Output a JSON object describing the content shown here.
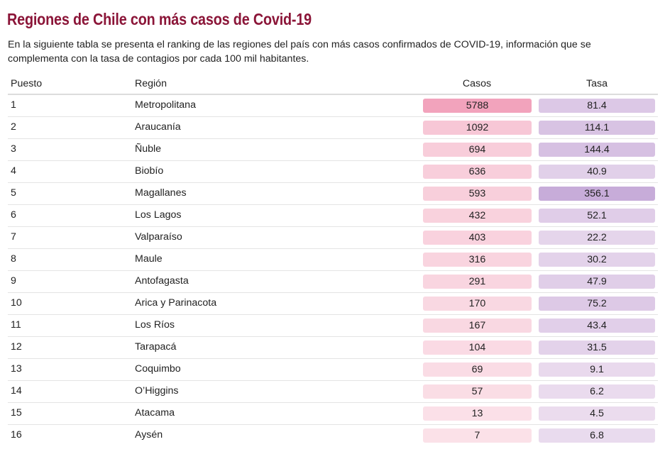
{
  "title": "Regiones de Chile con más casos de Covid-19",
  "subtitle": "En la siguiente tabla se presenta el ranking de las regiones del país con más casos confirmados de COVID-19, información que se complementa con la tasa de contagios por cada 100 mil habitantes.",
  "colors": {
    "title": "#8b1538",
    "casos_low": "#fbe3ea",
    "casos_high": "#f2a3bc",
    "tasa_low": "#efe2f1",
    "tasa_high": "#c7acd9"
  },
  "chart_data": {
    "type": "table",
    "columns": [
      "Puesto",
      "Región",
      "Casos",
      "Tasa"
    ],
    "rows": [
      {
        "puesto": "1",
        "region": "Metropolitana",
        "casos": 5788,
        "tasa": 81.4
      },
      {
        "puesto": "2",
        "region": "Araucanía",
        "casos": 1092,
        "tasa": 114.1
      },
      {
        "puesto": "3",
        "region": "Ñuble",
        "casos": 694,
        "tasa": 144.4
      },
      {
        "puesto": "4",
        "region": "Biobío",
        "casos": 636,
        "tasa": 40.9
      },
      {
        "puesto": "5",
        "region": "Magallanes",
        "casos": 593,
        "tasa": 356.1
      },
      {
        "puesto": "6",
        "region": "Los Lagos",
        "casos": 432,
        "tasa": 52.1
      },
      {
        "puesto": "7",
        "region": "Valparaíso",
        "casos": 403,
        "tasa": 22.2
      },
      {
        "puesto": "8",
        "region": "Maule",
        "casos": 316,
        "tasa": 30.2
      },
      {
        "puesto": "9",
        "region": "Antofagasta",
        "casos": 291,
        "tasa": 47.9
      },
      {
        "puesto": "10",
        "region": "Arica y Parinacota",
        "casos": 170,
        "tasa": 75.2
      },
      {
        "puesto": "11",
        "region": "Los Ríos",
        "casos": 167,
        "tasa": 43.4
      },
      {
        "puesto": "12",
        "region": "Tarapacá",
        "casos": 104,
        "tasa": 31.5
      },
      {
        "puesto": "13",
        "region": "Coquimbo",
        "casos": 69,
        "tasa": 9.1
      },
      {
        "puesto": "14",
        "region": "O’Higgins",
        "casos": 57,
        "tasa": 6.2
      },
      {
        "puesto": "15",
        "region": "Atacama",
        "casos": 13,
        "tasa": 4.5
      },
      {
        "puesto": "16",
        "region": "Aysén",
        "casos": 7,
        "tasa": 6.8
      }
    ]
  }
}
